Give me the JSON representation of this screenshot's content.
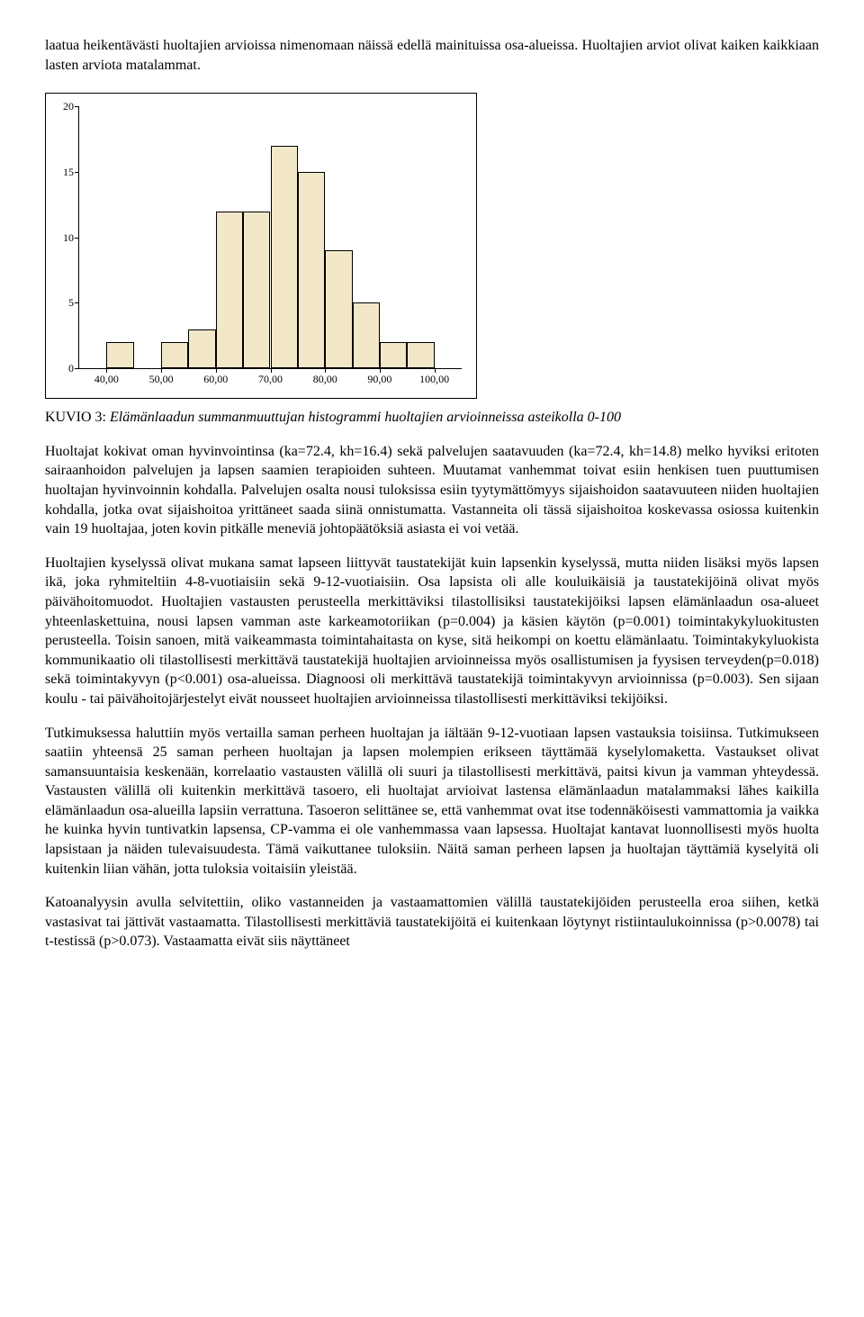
{
  "paragraphs": {
    "p0": "laatua heikentävästi huoltajien arvioissa nimenomaan näissä edellä mainituissa osa-alueissa. Huoltajien arviot olivat kaiken kaikkiaan lasten arviota matalammat.",
    "p1": "Huoltajat kokivat oman hyvinvointinsa (ka=72.4, kh=16.4) sekä palvelujen saatavuuden (ka=72.4, kh=14.8) melko hyviksi eritoten sairaanhoidon palvelujen ja lapsen saamien terapioiden suhteen. Muutamat vanhemmat toivat esiin henkisen tuen puuttumisen huoltajan hyvinvoinnin kohdalla. Palvelujen osalta nousi tuloksissa esiin tyytymättömyys sijaishoidon saatavuuteen niiden huoltajien kohdalla, jotka ovat sijaishoitoa yrittäneet saada siinä onnistumatta. Vastanneita oli tässä sijaishoitoa koskevassa osiossa kuitenkin vain 19 huoltajaa, joten kovin pitkälle meneviä johtopäätöksiä asiasta ei voi vetää.",
    "p2": "Huoltajien kyselyssä olivat mukana samat lapseen liittyvät taustatekijät kuin lapsenkin kyselyssä, mutta niiden lisäksi myös lapsen ikä, joka ryhmiteltiin 4-8-vuotiaisiin sekä 9-12-vuotiaisiin. Osa lapsista oli alle kouluikäisiä ja taustatekijöinä olivat myös päivähoitomuodot. Huoltajien vastausten perusteella merkittäviksi tilastollisiksi taustatekijöiksi lapsen elämänlaadun osa-alueet yhteenlaskettuina, nousi lapsen vamman aste karkeamotoriikan (p=0.004) ja käsien käytön (p=0.001) toimintakykyluokitusten perusteella. Toisin sanoen, mitä vaikeammasta toimintahaitasta on kyse, sitä heikompi on koettu elämänlaatu. Toimintakykyluokista kommunikaatio oli tilastollisesti merkittävä taustatekijä huoltajien arvioinneissa myös osallistumisen ja fyysisen terveyden(p=0.018) sekä toimintakyvyn (p<0.001) osa-alueissa. Diagnoosi oli merkittävä taustatekijä toimintakyvyn arvioinnissa (p=0.003). Sen sijaan koulu - tai päivähoitojärjestelyt eivät nousseet huoltajien arvioinneissa tilastollisesti merkittäviksi tekijöiksi.",
    "p3": "Tutkimuksessa haluttiin myös vertailla saman perheen huoltajan ja iältään 9-12-vuotiaan lapsen vastauksia toisiinsa. Tutkimukseen saatiin yhteensä 25 saman perheen huoltajan ja lapsen molempien erikseen täyttämää kyselylomaketta. Vastaukset olivat samansuuntaisia keskenään, korrelaatio vastausten välillä oli suuri ja tilastollisesti merkittävä, paitsi kivun ja vamman yhteydessä. Vastausten välillä oli kuitenkin merkittävä tasoero, eli huoltajat arvioivat lastensa elämänlaadun matalammaksi lähes kaikilla elämänlaadun osa-alueilla lapsiin verrattuna. Tasoeron selittänee se, että vanhemmat ovat itse todennäköisesti vammattomia ja vaikka he kuinka hyvin tuntivatkin lapsensa, CP-vamma ei ole vanhemmassa vaan lapsessa. Huoltajat kantavat luonnollisesti myös huolta lapsistaan ja näiden tulevaisuudesta. Tämä vaikuttanee tuloksiin. Näitä saman perheen lapsen ja huoltajan täyttämiä kyselyitä oli kuitenkin liian vähän, jotta tuloksia voitaisiin yleistää.",
    "p4": "Katoanalyysin avulla selvitettiin, oliko vastanneiden ja vastaamattomien välillä taustatekijöiden perusteella eroa siihen, ketkä vastasivat tai jättivät vastaamatta. Tilastollisesti merkittäviä taustatekijöitä ei kuitenkaan löytynyt ristiintaulukoinnissa (p>0.0078) tai t-testissä (p>0.073). Vastaamatta eivät siis näyttäneet"
  },
  "figure": {
    "caption_prefix": "KUVIO 3: ",
    "caption_text": "Elämänlaadun summanmuuttujan histogrammi huoltajien arvioinneissa asteikolla 0-100",
    "type": "histogram",
    "bar_fill": "#f2e8c9",
    "bar_stroke": "#000000",
    "background_color": "#ffffff",
    "frame_color": "#000000",
    "y_ticks": [
      0,
      5,
      10,
      15,
      20
    ],
    "y_tick_labels": [
      "0",
      "5",
      "10",
      "15",
      "20"
    ],
    "ylim": [
      0,
      20
    ],
    "x_ticks": [
      40,
      50,
      60,
      70,
      80,
      90,
      100
    ],
    "x_tick_labels": [
      "40,00",
      "50,00",
      "60,00",
      "70,00",
      "80,00",
      "90,00",
      "100,00"
    ],
    "xlim": [
      35,
      105
    ],
    "bin_width": 5,
    "bars": [
      {
        "center": 42.5,
        "value": 2
      },
      {
        "center": 47.5,
        "value": 0
      },
      {
        "center": 52.5,
        "value": 2
      },
      {
        "center": 57.5,
        "value": 3
      },
      {
        "center": 62.5,
        "value": 12
      },
      {
        "center": 67.5,
        "value": 12
      },
      {
        "center": 72.5,
        "value": 17
      },
      {
        "center": 77.5,
        "value": 15
      },
      {
        "center": 82.5,
        "value": 9
      },
      {
        "center": 87.5,
        "value": 5
      },
      {
        "center": 92.5,
        "value": 2
      },
      {
        "center": 97.5,
        "value": 2
      }
    ],
    "font_size_ticks": 12
  }
}
